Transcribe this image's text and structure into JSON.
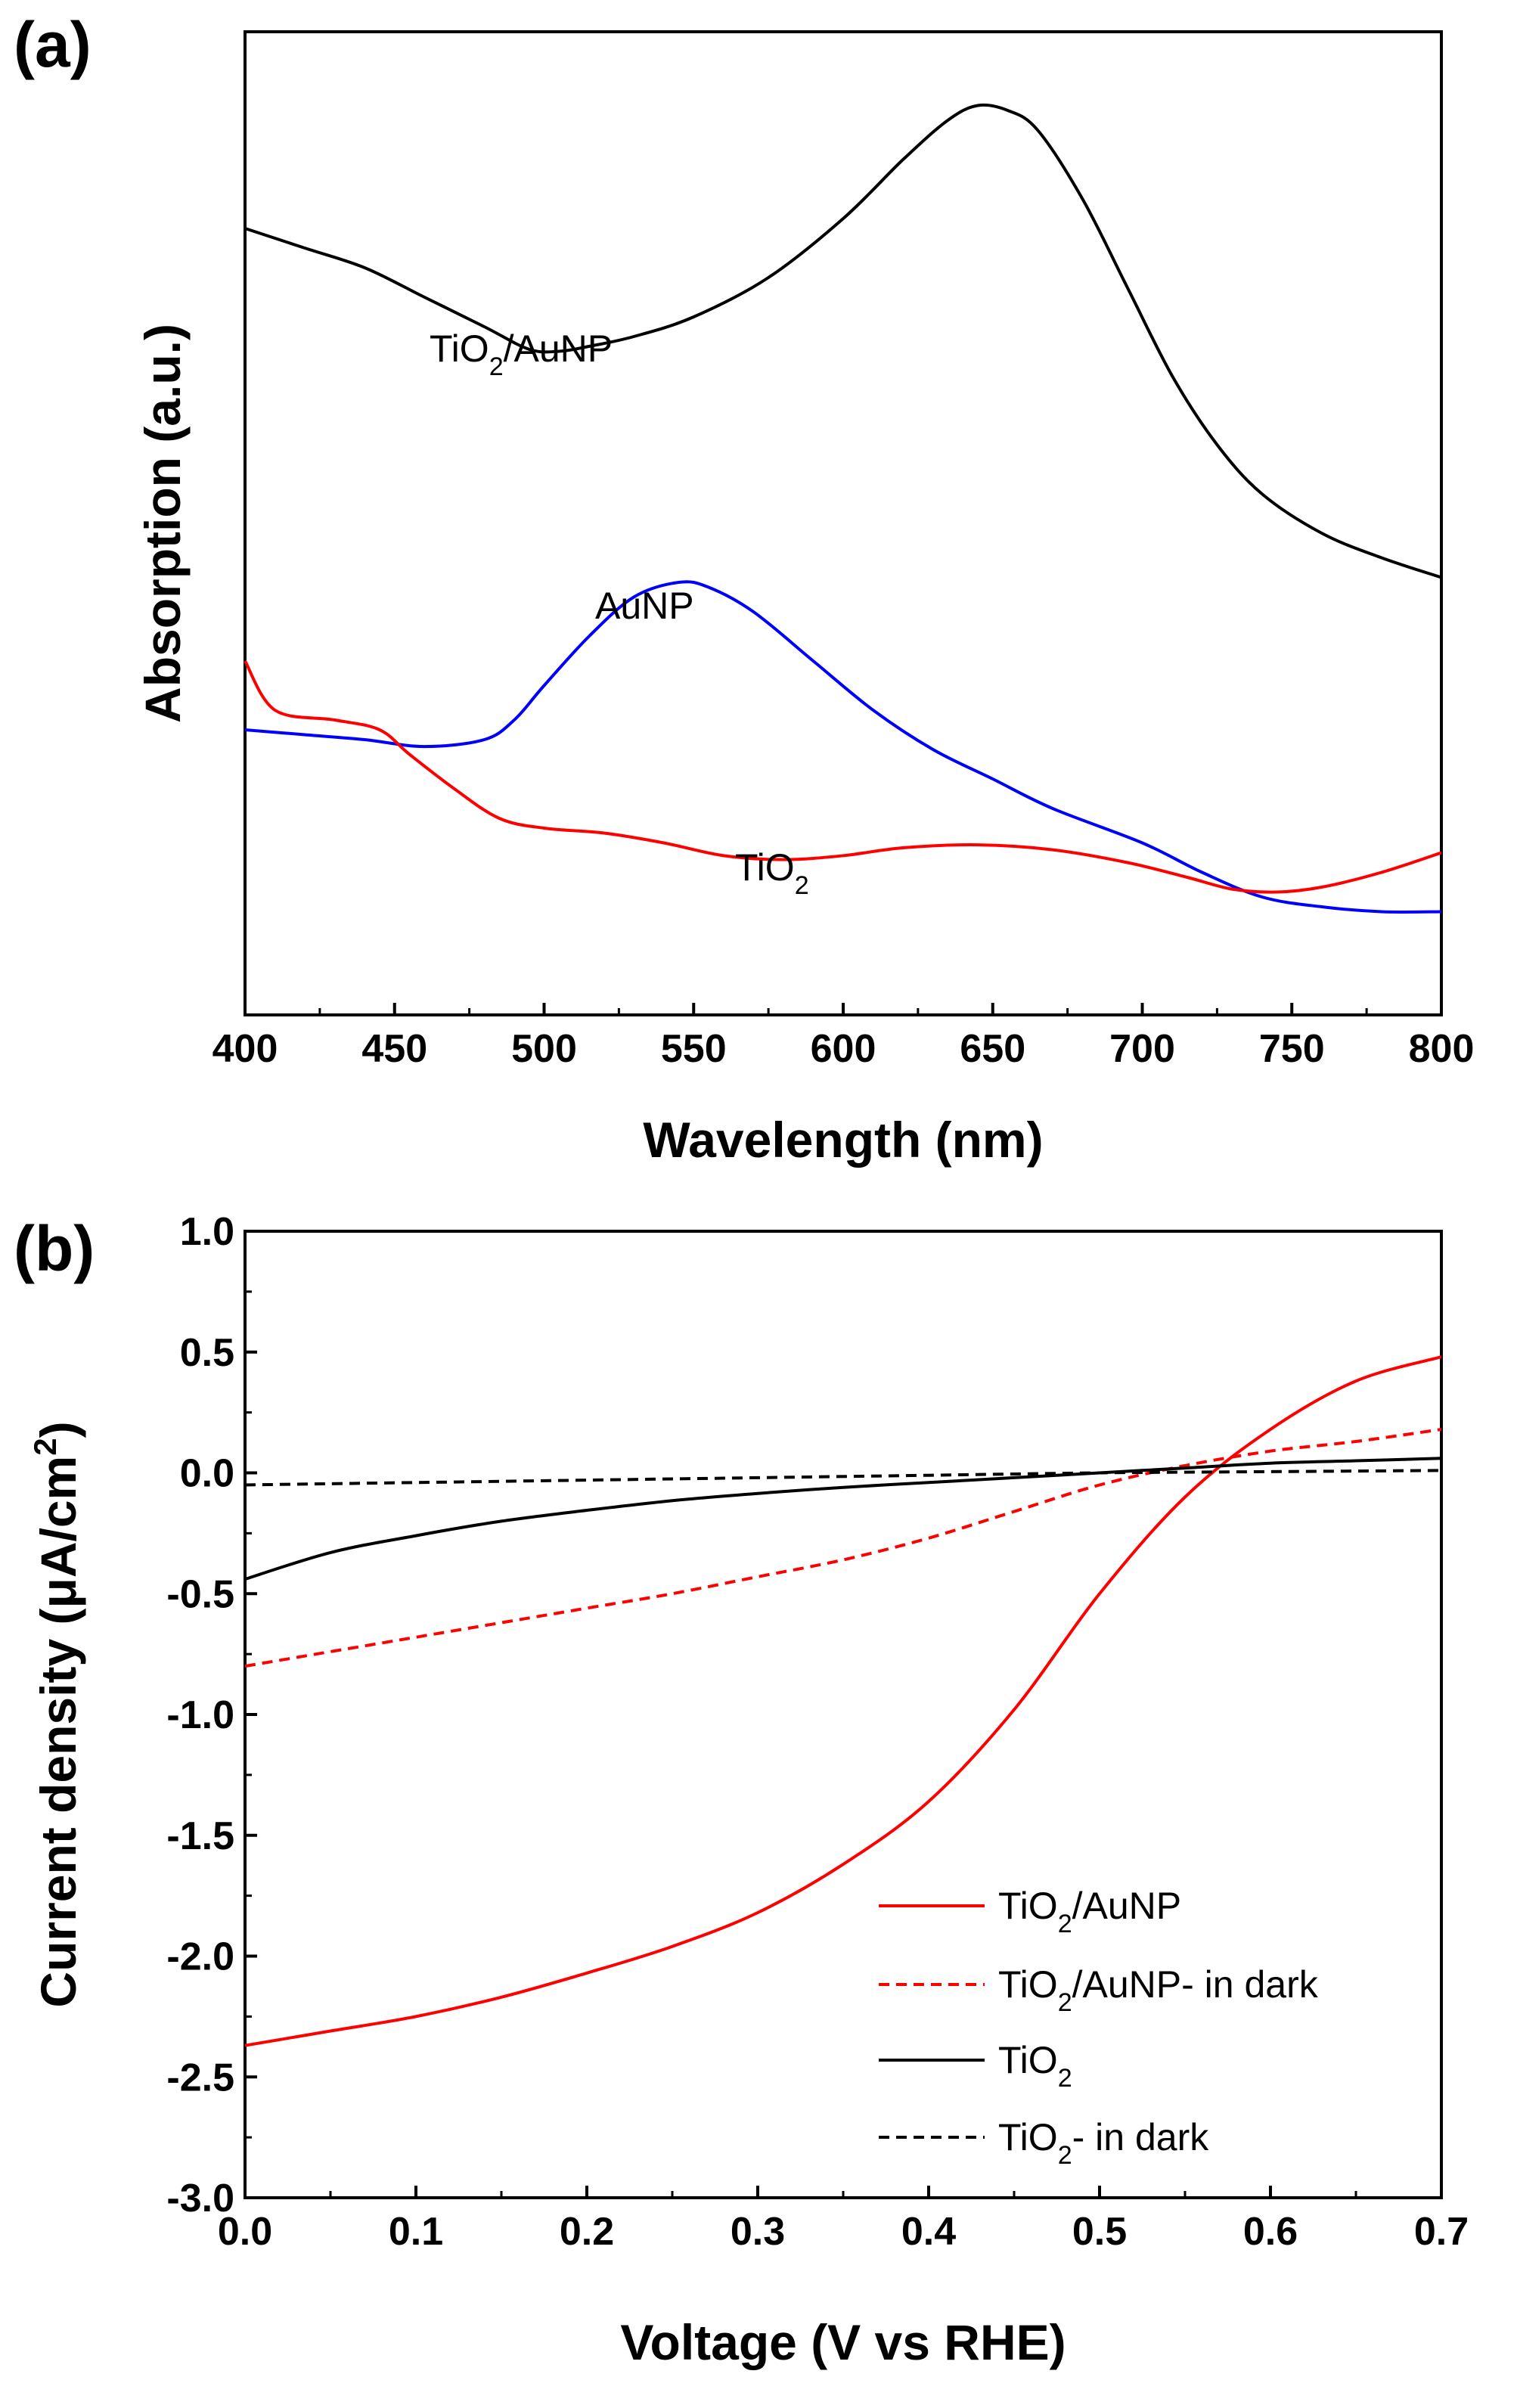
{
  "chart_data": [
    {
      "type": "line",
      "panel_label": "(a)",
      "xlabel": "Wavelength (nm)",
      "ylabel": "Absorption (a.u.)",
      "xlim": [
        400,
        800
      ],
      "ylim": [
        0,
        1
      ],
      "xticks": [
        400,
        450,
        500,
        550,
        600,
        650,
        700,
        750,
        800
      ],
      "yticks_shown": false,
      "grid": false,
      "series": [
        {
          "name": "TiO2/AuNP",
          "label_main": "TiO",
          "label_sub": "2",
          "label_rest": "/AuNP",
          "color": "#000000",
          "dash": "solid",
          "points": [
            [
              400,
              0.8
            ],
            [
              420,
              0.78
            ],
            [
              440,
              0.76
            ],
            [
              460,
              0.73
            ],
            [
              480,
              0.7
            ],
            [
              495,
              0.677
            ],
            [
              505,
              0.675
            ],
            [
              515,
              0.68
            ],
            [
              530,
              0.69
            ],
            [
              550,
              0.71
            ],
            [
              575,
              0.75
            ],
            [
              600,
              0.81
            ],
            [
              620,
              0.87
            ],
            [
              635,
              0.91
            ],
            [
              645,
              0.925
            ],
            [
              655,
              0.92
            ],
            [
              665,
              0.9
            ],
            [
              680,
              0.83
            ],
            [
              695,
              0.74
            ],
            [
              710,
              0.65
            ],
            [
              725,
              0.58
            ],
            [
              740,
              0.53
            ],
            [
              760,
              0.49
            ],
            [
              780,
              0.465
            ],
            [
              800,
              0.445
            ]
          ]
        },
        {
          "name": "AuNP",
          "label_main": "AuNP",
          "color": "#0000ff",
          "dash": "solid",
          "points": [
            [
              400,
              0.29
            ],
            [
              420,
              0.285
            ],
            [
              440,
              0.28
            ],
            [
              460,
              0.273
            ],
            [
              480,
              0.28
            ],
            [
              490,
              0.3
            ],
            [
              500,
              0.335
            ],
            [
              515,
              0.385
            ],
            [
              530,
              0.425
            ],
            [
              545,
              0.44
            ],
            [
              555,
              0.435
            ],
            [
              570,
              0.41
            ],
            [
              590,
              0.36
            ],
            [
              610,
              0.31
            ],
            [
              630,
              0.27
            ],
            [
              650,
              0.24
            ],
            [
              670,
              0.21
            ],
            [
              700,
              0.175
            ],
            [
              720,
              0.145
            ],
            [
              740,
              0.12
            ],
            [
              760,
              0.11
            ],
            [
              780,
              0.105
            ],
            [
              800,
              0.105
            ]
          ]
        },
        {
          "name": "TiO2",
          "label_main": "TiO",
          "label_sub": "2",
          "color": "#ff0000",
          "dash": "solid",
          "points": [
            [
              400,
              0.36
            ],
            [
              410,
              0.31
            ],
            [
              430,
              0.3
            ],
            [
              445,
              0.29
            ],
            [
              455,
              0.265
            ],
            [
              470,
              0.23
            ],
            [
              485,
              0.2
            ],
            [
              500,
              0.19
            ],
            [
              520,
              0.185
            ],
            [
              540,
              0.175
            ],
            [
              560,
              0.162
            ],
            [
              580,
              0.158
            ],
            [
              600,
              0.162
            ],
            [
              620,
              0.17
            ],
            [
              645,
              0.173
            ],
            [
              670,
              0.168
            ],
            [
              695,
              0.155
            ],
            [
              715,
              0.14
            ],
            [
              730,
              0.128
            ],
            [
              745,
              0.125
            ],
            [
              760,
              0.13
            ],
            [
              780,
              0.145
            ],
            [
              800,
              0.165
            ]
          ]
        }
      ]
    },
    {
      "type": "line",
      "panel_label": "(b)",
      "xlabel": "Voltage (V vs RHE)",
      "ylabel_main": "Current density (μA/cm",
      "ylabel_sup": "2",
      "ylabel_end": ")",
      "xlim": [
        0.0,
        0.7
      ],
      "ylim": [
        -3.0,
        1.0
      ],
      "xticks": [
        "0.0",
        "0.1",
        "0.2",
        "0.3",
        "0.4",
        "0.5",
        "0.6",
        "0.7"
      ],
      "yticks": [
        "1.0",
        "0.5",
        "0.0",
        "-0.5",
        "-1.0",
        "-1.5",
        "-2.0",
        "-2.5",
        "-3.0"
      ],
      "grid": false,
      "legend_position": "bottom-right",
      "series": [
        {
          "name": "TiO2/AuNP",
          "legend_main": "TiO",
          "legend_sub": "2",
          "legend_rest": "/AuNP",
          "color": "#ff0000",
          "dash": "solid",
          "points": [
            [
              0.0,
              -2.37
            ],
            [
              0.05,
              -2.31
            ],
            [
              0.1,
              -2.25
            ],
            [
              0.15,
              -2.17
            ],
            [
              0.2,
              -2.07
            ],
            [
              0.25,
              -1.96
            ],
            [
              0.3,
              -1.82
            ],
            [
              0.35,
              -1.62
            ],
            [
              0.4,
              -1.36
            ],
            [
              0.45,
              -0.98
            ],
            [
              0.5,
              -0.5
            ],
            [
              0.55,
              -0.1
            ],
            [
              0.6,
              0.18
            ],
            [
              0.65,
              0.38
            ],
            [
              0.7,
              0.48
            ]
          ]
        },
        {
          "name": "TiO2/AuNP- in dark",
          "legend_main": "TiO",
          "legend_sub": "2",
          "legend_rest": "/AuNP- in dark",
          "color": "#ff0000",
          "dash": "dashed",
          "points": [
            [
              0.0,
              -0.8
            ],
            [
              0.05,
              -0.74
            ],
            [
              0.1,
              -0.68
            ],
            [
              0.15,
              -0.62
            ],
            [
              0.2,
              -0.56
            ],
            [
              0.25,
              -0.5
            ],
            [
              0.3,
              -0.43
            ],
            [
              0.35,
              -0.36
            ],
            [
              0.4,
              -0.27
            ],
            [
              0.45,
              -0.16
            ],
            [
              0.5,
              -0.05
            ],
            [
              0.55,
              0.03
            ],
            [
              0.6,
              0.09
            ],
            [
              0.65,
              0.13
            ],
            [
              0.7,
              0.18
            ]
          ]
        },
        {
          "name": "TiO2",
          "legend_main": "TiO",
          "legend_sub": "2",
          "color": "#000000",
          "dash": "solid",
          "points": [
            [
              0.0,
              -0.44
            ],
            [
              0.05,
              -0.33
            ],
            [
              0.1,
              -0.26
            ],
            [
              0.15,
              -0.2
            ],
            [
              0.2,
              -0.155
            ],
            [
              0.25,
              -0.115
            ],
            [
              0.3,
              -0.085
            ],
            [
              0.35,
              -0.06
            ],
            [
              0.4,
              -0.04
            ],
            [
              0.45,
              -0.02
            ],
            [
              0.5,
              0.0
            ],
            [
              0.55,
              0.02
            ],
            [
              0.6,
              0.04
            ],
            [
              0.65,
              0.05
            ],
            [
              0.7,
              0.06
            ]
          ]
        },
        {
          "name": "TiO2- in dark",
          "legend_main": "TiO",
          "legend_sub": "2",
          "legend_rest": "- in dark",
          "color": "#000000",
          "dash": "dashed",
          "points": [
            [
              0.0,
              -0.05
            ],
            [
              0.1,
              -0.04
            ],
            [
              0.2,
              -0.03
            ],
            [
              0.3,
              -0.02
            ],
            [
              0.4,
              -0.01
            ],
            [
              0.5,
              0.0
            ],
            [
              0.6,
              0.005
            ],
            [
              0.7,
              0.01
            ]
          ]
        }
      ]
    }
  ]
}
